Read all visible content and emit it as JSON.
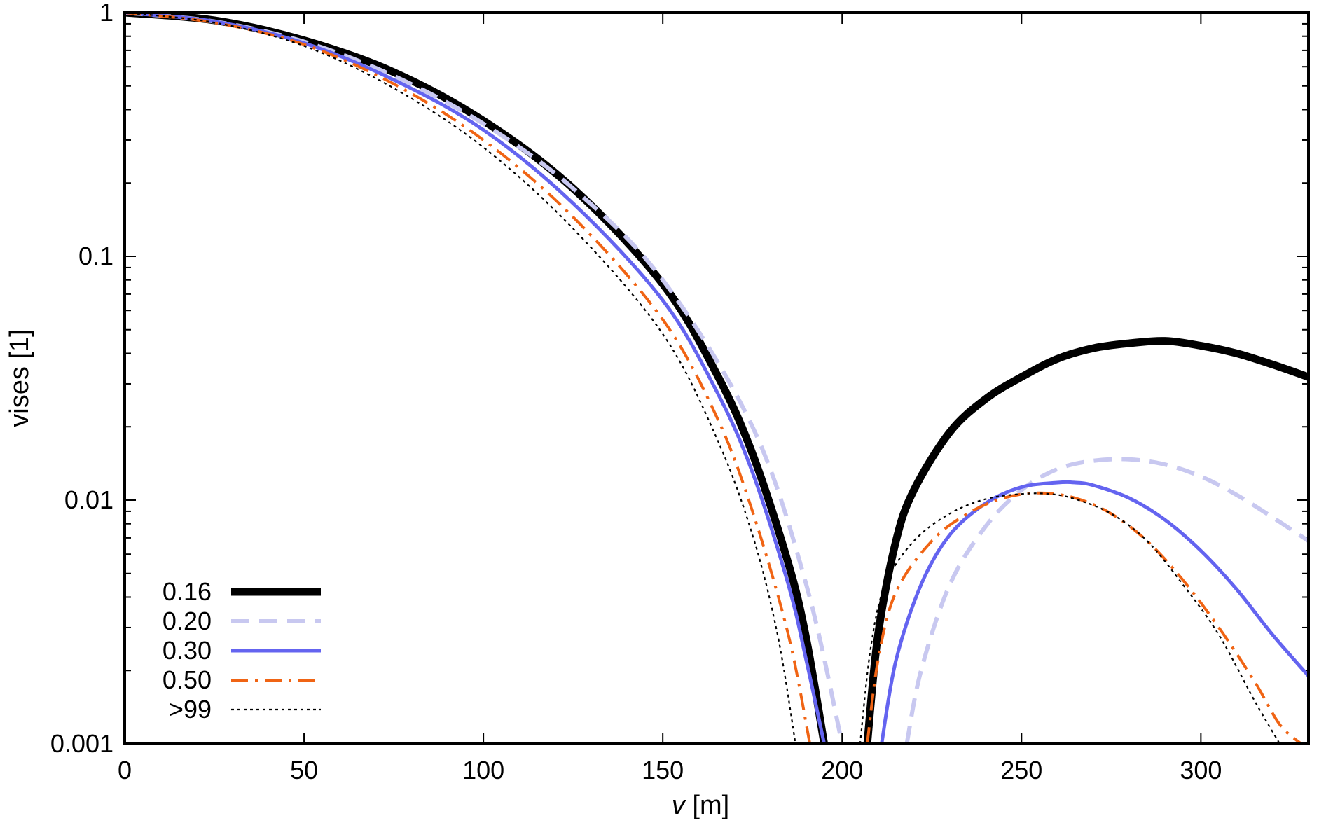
{
  "chart_data": {
    "type": "line",
    "xlabel_var": "v",
    "xlabel_unit": " [m]",
    "ylabel": "vises [1]",
    "xlim": [
      0,
      330
    ],
    "ylim": [
      0.001,
      1
    ],
    "ylog": true,
    "x_ticks": [
      0,
      50,
      100,
      150,
      200,
      250,
      300
    ],
    "x_tick_labels": [
      "0",
      "50",
      "100",
      "150",
      "200",
      "250",
      "300"
    ],
    "y_ticks": [
      1,
      0.1,
      0.01,
      0.001
    ],
    "y_tick_labels": [
      "1",
      "0.1",
      "0.01",
      "0.001"
    ],
    "grid": false,
    "legend_position": "bottom-left",
    "series": [
      {
        "name": "0.16",
        "color": "#000000",
        "style": "solid-thick",
        "segments": [
          [
            [
              0,
              1
            ],
            [
              25,
              0.93
            ],
            [
              50,
              0.77
            ],
            [
              75,
              0.57
            ],
            [
              100,
              0.36
            ],
            [
              125,
              0.19
            ],
            [
              150,
              0.077
            ],
            [
              165,
              0.033
            ],
            [
              175,
              0.0155
            ],
            [
              185,
              0.0055
            ],
            [
              190,
              0.0027
            ],
            [
              195,
              0.001
            ]
          ],
          [
            [
              207,
              0.001
            ],
            [
              210,
              0.0028
            ],
            [
              215,
              0.0068
            ],
            [
              220,
              0.011
            ],
            [
              230,
              0.019
            ],
            [
              240,
              0.026
            ],
            [
              250,
              0.032
            ],
            [
              260,
              0.038
            ],
            [
              270,
              0.042
            ],
            [
              280,
              0.044
            ],
            [
              290,
              0.045
            ],
            [
              300,
              0.043
            ],
            [
              310,
              0.04
            ],
            [
              320,
              0.036
            ],
            [
              330,
              0.032
            ]
          ]
        ]
      },
      {
        "name": "0.20",
        "color": "#c8c8f0",
        "style": "dashed",
        "segments": [
          [
            [
              0,
              1
            ],
            [
              25,
              0.92
            ],
            [
              50,
              0.76
            ],
            [
              75,
              0.55
            ],
            [
              100,
              0.35
            ],
            [
              125,
              0.19
            ],
            [
              150,
              0.08
            ],
            [
              175,
              0.02
            ],
            [
              190,
              0.0045
            ],
            [
              200,
              0.001
            ]
          ],
          [
            [
              218,
              0.001
            ],
            [
              222,
              0.002
            ],
            [
              230,
              0.0045
            ],
            [
              240,
              0.0078
            ],
            [
              250,
              0.011
            ],
            [
              260,
              0.0134
            ],
            [
              270,
              0.0145
            ],
            [
              280,
              0.0147
            ],
            [
              290,
              0.014
            ],
            [
              300,
              0.0125
            ],
            [
              310,
              0.0105
            ],
            [
              320,
              0.0085
            ],
            [
              330,
              0.0068
            ]
          ]
        ]
      },
      {
        "name": "0.30",
        "color": "#6464f0",
        "style": "solid",
        "segments": [
          [
            [
              0,
              1
            ],
            [
              25,
              0.92
            ],
            [
              50,
              0.75
            ],
            [
              75,
              0.53
            ],
            [
              100,
              0.33
            ],
            [
              125,
              0.165
            ],
            [
              150,
              0.066
            ],
            [
              165,
              0.028
            ],
            [
              175,
              0.013
            ],
            [
              185,
              0.0045
            ],
            [
              190,
              0.0022
            ],
            [
              195,
              0.001
            ]
          ],
          [
            [
              211,
              0.001
            ],
            [
              215,
              0.0022
            ],
            [
              222,
              0.0045
            ],
            [
              230,
              0.0072
            ],
            [
              240,
              0.0097
            ],
            [
              250,
              0.0113
            ],
            [
              260,
              0.0118
            ],
            [
              265,
              0.0118
            ],
            [
              270,
              0.0115
            ],
            [
              280,
              0.0102
            ],
            [
              290,
              0.0083
            ],
            [
              300,
              0.0062
            ],
            [
              310,
              0.0043
            ],
            [
              320,
              0.0028
            ],
            [
              330,
              0.0019
            ]
          ]
        ]
      },
      {
        "name": "0.50",
        "color": "#f06414",
        "style": "dashdot",
        "segments": [
          [
            [
              0,
              1
            ],
            [
              25,
              0.91
            ],
            [
              50,
              0.74
            ],
            [
              75,
              0.51
            ],
            [
              100,
              0.3
            ],
            [
              125,
              0.145
            ],
            [
              150,
              0.055
            ],
            [
              165,
              0.022
            ],
            [
              175,
              0.009
            ],
            [
              185,
              0.0028
            ],
            [
              191,
              0.001
            ]
          ],
          [
            [
              207,
              0.001
            ],
            [
              210,
              0.0022
            ],
            [
              215,
              0.0042
            ],
            [
              225,
              0.0068
            ],
            [
              235,
              0.0088
            ],
            [
              245,
              0.0102
            ],
            [
              255,
              0.0107
            ],
            [
              265,
              0.0102
            ],
            [
              275,
              0.0088
            ],
            [
              285,
              0.0068
            ],
            [
              295,
              0.0047
            ],
            [
              305,
              0.003
            ],
            [
              315,
              0.0018
            ],
            [
              322,
              0.0012
            ],
            [
              328,
              0.001
            ]
          ]
        ]
      },
      {
        "name": ">99",
        "color": "#000000",
        "style": "dotted",
        "segments": [
          [
            [
              0,
              1
            ],
            [
              25,
              0.91
            ],
            [
              50,
              0.73
            ],
            [
              75,
              0.49
            ],
            [
              100,
              0.28
            ],
            [
              125,
              0.13
            ],
            [
              150,
              0.048
            ],
            [
              165,
              0.018
            ],
            [
              175,
              0.0072
            ],
            [
              182,
              0.0028
            ],
            [
              187,
              0.001
            ]
          ],
          [
            [
              205,
              0.001
            ],
            [
              208,
              0.0025
            ],
            [
              212,
              0.0045
            ],
            [
              220,
              0.0068
            ],
            [
              230,
              0.0088
            ],
            [
              240,
              0.0101
            ],
            [
              250,
              0.0106
            ],
            [
              258,
              0.0106
            ],
            [
              265,
              0.0101
            ],
            [
              275,
              0.0088
            ],
            [
              285,
              0.0068
            ],
            [
              295,
              0.0045
            ],
            [
              305,
              0.0028
            ],
            [
              315,
              0.0015
            ],
            [
              322,
              0.001
            ]
          ]
        ]
      }
    ]
  }
}
